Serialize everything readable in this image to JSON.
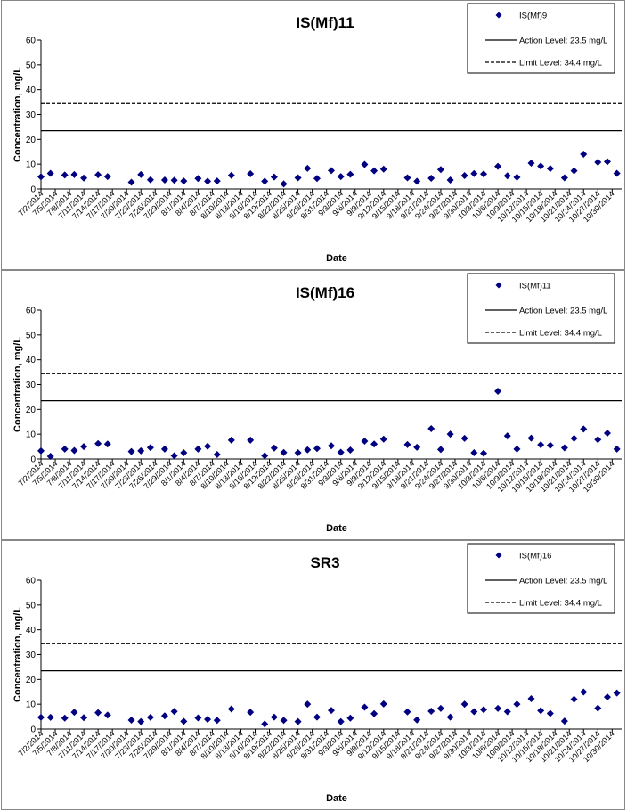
{
  "x_dates": [
    "7/2/2014",
    "7/5/2014",
    "7/8/2014",
    "7/11/2014",
    "7/14/2014",
    "7/17/2014",
    "7/20/2014",
    "7/23/2014",
    "7/26/2014",
    "7/29/2014",
    "8/1/2014",
    "8/4/2014",
    "8/7/2014",
    "8/10/2014",
    "8/13/2014",
    "8/16/2014",
    "8/19/2014",
    "8/22/2014",
    "8/25/2014",
    "8/28/2014",
    "8/31/2014",
    "9/3/2014",
    "9/6/2014",
    "9/9/2014",
    "9/12/2014",
    "9/15/2014",
    "9/18/2014",
    "9/21/2014",
    "9/24/2014",
    "9/27/2014",
    "9/30/2014",
    "10/3/2014",
    "10/6/2014",
    "10/9/2014",
    "10/12/2014",
    "10/15/2014",
    "10/18/2014",
    "10/21/2014",
    "10/24/2014",
    "10/27/2014",
    "10/30/2014"
  ],
  "chart_data": [
    {
      "type": "scatter",
      "title": "IS(Mf)11",
      "xlabel": "Date",
      "ylabel": "Concentration, mg/L",
      "ylim": [
        0,
        60
      ],
      "yticks": [
        "0",
        "10",
        "20",
        "30",
        "40",
        "50",
        "60"
      ],
      "xlim": [
        "7/2/2014",
        "11/1/2014"
      ],
      "grid": false,
      "legend_position": "top-right",
      "legend": {
        "series": "IS(Mf)9",
        "action": "Action Level: 23.5 mg/L",
        "limit": "Limit Level: 34.4 mg/L"
      },
      "action_level": 23.5,
      "limit_level": 34.4,
      "series": [
        {
          "name": "IS(Mf)9",
          "color": "#000080",
          "points": [
            [
              "7/2/2014",
              4.9
            ],
            [
              "7/4/2014",
              6.3
            ],
            [
              "7/7/2014",
              5.6
            ],
            [
              "7/9/2014",
              5.8
            ],
            [
              "7/11/2014",
              4.4
            ],
            [
              "7/14/2014",
              5.7
            ],
            [
              "7/16/2014",
              5.0
            ],
            [
              "7/21/2014",
              2.7
            ],
            [
              "7/23/2014",
              5.8
            ],
            [
              "7/25/2014",
              3.7
            ],
            [
              "7/28/2014",
              3.6
            ],
            [
              "7/30/2014",
              3.5
            ],
            [
              "8/1/2014",
              3.2
            ],
            [
              "8/4/2014",
              4.2
            ],
            [
              "8/6/2014",
              3.1
            ],
            [
              "8/8/2014",
              3.2
            ],
            [
              "8/11/2014",
              5.5
            ],
            [
              "8/15/2014",
              6.1
            ],
            [
              "8/18/2014",
              3.1
            ],
            [
              "8/20/2014",
              4.8
            ],
            [
              "8/22/2014",
              2.0
            ],
            [
              "8/25/2014",
              4.5
            ],
            [
              "8/27/2014",
              8.3
            ],
            [
              "8/29/2014",
              4.2
            ],
            [
              "9/1/2014",
              7.4
            ],
            [
              "9/3/2014",
              5.0
            ],
            [
              "9/5/2014",
              5.9
            ],
            [
              "9/8/2014",
              9.9
            ],
            [
              "9/10/2014",
              7.3
            ],
            [
              "9/12/2014",
              8.0
            ],
            [
              "9/17/2014",
              4.5
            ],
            [
              "9/19/2014",
              3.1
            ],
            [
              "9/22/2014",
              4.3
            ],
            [
              "9/24/2014",
              7.8
            ],
            [
              "9/26/2014",
              3.6
            ],
            [
              "9/29/2014",
              5.4
            ],
            [
              "10/1/2014",
              6.2
            ],
            [
              "10/3/2014",
              6.0
            ],
            [
              "10/6/2014",
              9.1
            ],
            [
              "10/8/2014",
              5.3
            ],
            [
              "10/10/2014",
              4.7
            ],
            [
              "10/13/2014",
              10.4
            ],
            [
              "10/15/2014",
              9.2
            ],
            [
              "10/17/2014",
              8.2
            ],
            [
              "10/20/2014",
              4.5
            ],
            [
              "10/22/2014",
              7.3
            ],
            [
              "10/24/2014",
              14.0
            ],
            [
              "10/27/2014",
              10.8
            ],
            [
              "10/29/2014",
              11.0
            ],
            [
              "10/31/2014",
              6.3
            ]
          ]
        }
      ]
    },
    {
      "type": "scatter",
      "title": "IS(Mf)16",
      "xlabel": "Date",
      "ylabel": "Concentration, mg/L",
      "ylim": [
        0,
        60
      ],
      "yticks": [
        "0",
        "10",
        "20",
        "30",
        "40",
        "50",
        "60"
      ],
      "xlim": [
        "7/2/2014",
        "11/1/2014"
      ],
      "grid": false,
      "legend_position": "top-right",
      "legend": {
        "series": "IS(Mf)11",
        "action": "Action Level: 23.5 mg/L",
        "limit": "Limit Level: 34.4 mg/L"
      },
      "action_level": 23.5,
      "limit_level": 34.4,
      "series": [
        {
          "name": "IS(Mf)11",
          "color": "#000080",
          "points": [
            [
              "7/2/2014",
              3.3
            ],
            [
              "7/4/2014",
              1.1
            ],
            [
              "7/7/2014",
              4.0
            ],
            [
              "7/9/2014",
              3.4
            ],
            [
              "7/11/2014",
              5.0
            ],
            [
              "7/14/2014",
              6.2
            ],
            [
              "7/16/2014",
              6.0
            ],
            [
              "7/21/2014",
              3.0
            ],
            [
              "7/23/2014",
              3.3
            ],
            [
              "7/25/2014",
              4.6
            ],
            [
              "7/28/2014",
              4.0
            ],
            [
              "7/30/2014",
              1.3
            ],
            [
              "8/1/2014",
              2.5
            ],
            [
              "8/4/2014",
              4.0
            ],
            [
              "8/6/2014",
              5.1
            ],
            [
              "8/8/2014",
              1.8
            ],
            [
              "8/11/2014",
              7.6
            ],
            [
              "8/15/2014",
              7.6
            ],
            [
              "8/18/2014",
              1.3
            ],
            [
              "8/20/2014",
              4.4
            ],
            [
              "8/22/2014",
              2.6
            ],
            [
              "8/25/2014",
              2.5
            ],
            [
              "8/27/2014",
              3.7
            ],
            [
              "8/29/2014",
              4.2
            ],
            [
              "9/1/2014",
              5.3
            ],
            [
              "9/3/2014",
              2.7
            ],
            [
              "9/5/2014",
              3.6
            ],
            [
              "9/8/2014",
              7.2
            ],
            [
              "9/10/2014",
              6.0
            ],
            [
              "9/12/2014",
              8.0
            ],
            [
              "9/17/2014",
              5.8
            ],
            [
              "9/19/2014",
              4.7
            ],
            [
              "9/22/2014",
              12.2
            ],
            [
              "9/24/2014",
              3.8
            ],
            [
              "9/26/2014",
              10.0
            ],
            [
              "9/29/2014",
              8.3
            ],
            [
              "10/1/2014",
              2.5
            ],
            [
              "10/3/2014",
              2.3
            ],
            [
              "10/6/2014",
              27.3
            ],
            [
              "10/8/2014",
              9.3
            ],
            [
              "10/10/2014",
              4.0
            ],
            [
              "10/13/2014",
              8.4
            ],
            [
              "10/15/2014",
              5.7
            ],
            [
              "10/17/2014",
              5.5
            ],
            [
              "10/20/2014",
              4.5
            ],
            [
              "10/22/2014",
              8.3
            ],
            [
              "10/24/2014",
              12.1
            ],
            [
              "10/27/2014",
              7.8
            ],
            [
              "10/29/2014",
              10.4
            ],
            [
              "10/31/2014",
              4.0
            ]
          ]
        }
      ]
    },
    {
      "type": "scatter",
      "title": "SR3",
      "xlabel": "Date",
      "ylabel": "Concentration, mg/L",
      "ylim": [
        0,
        60
      ],
      "yticks": [
        "0",
        "10",
        "20",
        "30",
        "40",
        "50",
        "60"
      ],
      "xlim": [
        "7/2/2014",
        "11/1/2014"
      ],
      "grid": false,
      "legend_position": "top-right",
      "legend": {
        "series": "IS(Mf)16",
        "action": "Action Level: 23.5 mg/L",
        "limit": "Limit Level: 34.4 mg/L"
      },
      "action_level": 23.5,
      "limit_level": 34.4,
      "series": [
        {
          "name": "IS(Mf)16",
          "color": "#000080",
          "points": [
            [
              "7/2/2014",
              4.7
            ],
            [
              "7/4/2014",
              4.7
            ],
            [
              "7/7/2014",
              4.4
            ],
            [
              "7/9/2014",
              6.8
            ],
            [
              "7/11/2014",
              4.6
            ],
            [
              "7/14/2014",
              6.6
            ],
            [
              "7/16/2014",
              5.6
            ],
            [
              "7/21/2014",
              3.6
            ],
            [
              "7/23/2014",
              3.0
            ],
            [
              "7/25/2014",
              4.7
            ],
            [
              "7/28/2014",
              5.3
            ],
            [
              "7/30/2014",
              7.1
            ],
            [
              "8/1/2014",
              3.1
            ],
            [
              "8/4/2014",
              4.5
            ],
            [
              "8/6/2014",
              3.9
            ],
            [
              "8/8/2014",
              3.5
            ],
            [
              "8/11/2014",
              8.1
            ],
            [
              "8/15/2014",
              6.8
            ],
            [
              "8/18/2014",
              2.0
            ],
            [
              "8/20/2014",
              4.8
            ],
            [
              "8/22/2014",
              3.5
            ],
            [
              "8/25/2014",
              3.0
            ],
            [
              "8/27/2014",
              10.0
            ],
            [
              "8/29/2014",
              4.8
            ],
            [
              "9/1/2014",
              7.5
            ],
            [
              "9/3/2014",
              3.0
            ],
            [
              "9/5/2014",
              4.4
            ],
            [
              "9/8/2014",
              8.8
            ],
            [
              "9/10/2014",
              6.2
            ],
            [
              "9/12/2014",
              10.1
            ],
            [
              "9/17/2014",
              6.9
            ],
            [
              "9/19/2014",
              3.7
            ],
            [
              "9/22/2014",
              7.2
            ],
            [
              "9/24/2014",
              8.3
            ],
            [
              "9/26/2014",
              4.8
            ],
            [
              "9/29/2014",
              10.0
            ],
            [
              "10/1/2014",
              7.0
            ],
            [
              "10/3/2014",
              7.8
            ],
            [
              "10/6/2014",
              8.3
            ],
            [
              "10/8/2014",
              7.0
            ],
            [
              "10/10/2014",
              10.0
            ],
            [
              "10/13/2014",
              12.2
            ],
            [
              "10/15/2014",
              7.4
            ],
            [
              "10/17/2014",
              6.3
            ],
            [
              "10/20/2014",
              3.2
            ],
            [
              "10/22/2014",
              12.0
            ],
            [
              "10/24/2014",
              14.9
            ],
            [
              "10/27/2014",
              8.4
            ],
            [
              "10/29/2014",
              12.9
            ],
            [
              "10/31/2014",
              14.5
            ]
          ]
        }
      ]
    }
  ]
}
